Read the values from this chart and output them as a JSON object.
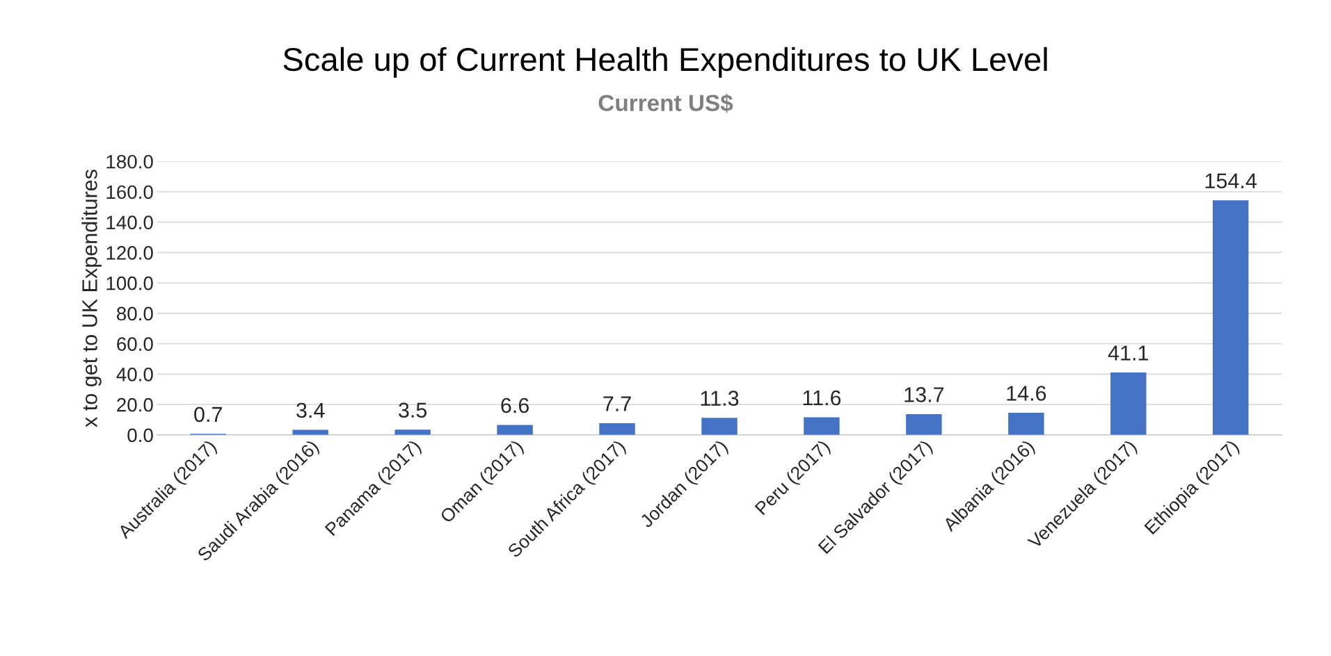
{
  "chart_data": {
    "type": "bar",
    "title": "Scale up of Current Health Expenditures to UK Level",
    "subtitle": "Current US$",
    "ylabel": "x to get to UK Expenditures",
    "categories": [
      "Australia (2017)",
      "Saudi Arabia (2016)",
      "Panama (2017)",
      "Oman (2017)",
      "South Africa (2017)",
      "Jordan (2017)",
      "Peru (2017)",
      "El Salvador (2017)",
      "Albania (2016)",
      "Venezuela (2017)",
      "Ethiopia (2017)"
    ],
    "values": [
      0.7,
      3.4,
      3.5,
      6.6,
      7.7,
      11.3,
      11.6,
      13.7,
      14.6,
      41.1,
      154.4
    ],
    "color": "#4472c4",
    "data_labels": true,
    "grid": "y",
    "legend": false,
    "ylim": [
      0,
      180
    ],
    "yticks": [
      {
        "value": 0,
        "label": "0.0"
      },
      {
        "value": 20,
        "label": "20.0"
      },
      {
        "value": 40,
        "label": "40.0"
      },
      {
        "value": 60,
        "label": "60.0"
      },
      {
        "value": 80,
        "label": "80.0"
      },
      {
        "value": 100,
        "label": "100.0"
      },
      {
        "value": 120,
        "label": "120.0"
      },
      {
        "value": 140,
        "label": "140.0"
      },
      {
        "value": 160,
        "label": "160.0"
      },
      {
        "value": 180,
        "label": "180.0"
      }
    ]
  }
}
